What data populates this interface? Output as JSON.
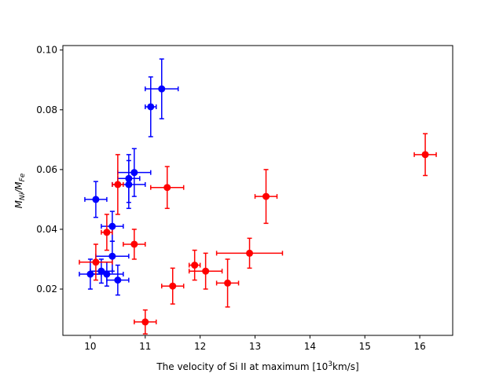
{
  "chart_data": {
    "type": "scatter",
    "xlabel": {
      "main": "The velocity of Si II at maximum [10",
      "sup": "3",
      "unit": "km/s]"
    },
    "ylabel": {
      "main": "M",
      "sub1": "Ni",
      "sep": "/M",
      "sub2": "Fe"
    },
    "xlim": [
      9.5,
      16.6
    ],
    "ylim": [
      0.0045,
      0.1015
    ],
    "xticks": [
      10,
      11,
      12,
      13,
      14,
      15,
      16
    ],
    "yticks": [
      0.02,
      0.04,
      0.06,
      0.08,
      0.1
    ],
    "xtick_labels": [
      "10",
      "11",
      "12",
      "13",
      "14",
      "15",
      "16"
    ],
    "ytick_labels": [
      "0.02",
      "0.04",
      "0.06",
      "0.08",
      "0.10"
    ],
    "grid": false,
    "legend": "none",
    "series": [
      {
        "color": "#0000ff",
        "points": [
          {
            "x": 11.3,
            "y": 0.087,
            "xerr": 0.3,
            "yerr": 0.01
          },
          {
            "x": 11.1,
            "y": 0.081,
            "xerr": 0.1,
            "yerr": 0.01
          },
          {
            "x": 10.8,
            "y": 0.059,
            "xerr": 0.3,
            "yerr": 0.008
          },
          {
            "x": 10.7,
            "y": 0.057,
            "xerr": 0.2,
            "yerr": 0.008
          },
          {
            "x": 10.7,
            "y": 0.055,
            "xerr": 0.3,
            "yerr": 0.008
          },
          {
            "x": 10.1,
            "y": 0.05,
            "xerr": 0.2,
            "yerr": 0.006
          },
          {
            "x": 10.4,
            "y": 0.041,
            "xerr": 0.2,
            "yerr": 0.005
          },
          {
            "x": 10.4,
            "y": 0.031,
            "xerr": 0.3,
            "yerr": 0.005
          },
          {
            "x": 10.2,
            "y": 0.026,
            "xerr": 0.2,
            "yerr": 0.004
          },
          {
            "x": 10.3,
            "y": 0.025,
            "xerr": 0.3,
            "yerr": 0.004
          },
          {
            "x": 10.0,
            "y": 0.025,
            "xerr": 0.2,
            "yerr": 0.005
          },
          {
            "x": 10.5,
            "y": 0.023,
            "xerr": 0.2,
            "yerr": 0.005
          }
        ]
      },
      {
        "color": "#ff0000",
        "points": [
          {
            "x": 16.1,
            "y": 0.065,
            "xerr": 0.2,
            "yerr": 0.007
          },
          {
            "x": 10.5,
            "y": 0.055,
            "xerr": 0.1,
            "yerr": 0.01
          },
          {
            "x": 11.4,
            "y": 0.054,
            "xerr": 0.3,
            "yerr": 0.007
          },
          {
            "x": 13.2,
            "y": 0.051,
            "xerr": 0.2,
            "yerr": 0.009
          },
          {
            "x": 10.3,
            "y": 0.039,
            "xerr": 0.1,
            "yerr": 0.006
          },
          {
            "x": 10.8,
            "y": 0.035,
            "xerr": 0.2,
            "yerr": 0.005
          },
          {
            "x": 12.9,
            "y": 0.032,
            "xerr": 0.6,
            "yerr": 0.005
          },
          {
            "x": 10.1,
            "y": 0.029,
            "xerr": 0.3,
            "yerr": 0.006
          },
          {
            "x": 11.9,
            "y": 0.028,
            "xerr": 0.1,
            "yerr": 0.005
          },
          {
            "x": 12.1,
            "y": 0.026,
            "xerr": 0.3,
            "yerr": 0.006
          },
          {
            "x": 12.5,
            "y": 0.022,
            "xerr": 0.2,
            "yerr": 0.008
          },
          {
            "x": 11.5,
            "y": 0.021,
            "xerr": 0.2,
            "yerr": 0.006
          },
          {
            "x": 11.0,
            "y": 0.009,
            "xerr": 0.2,
            "yerr": 0.004
          }
        ]
      }
    ]
  }
}
